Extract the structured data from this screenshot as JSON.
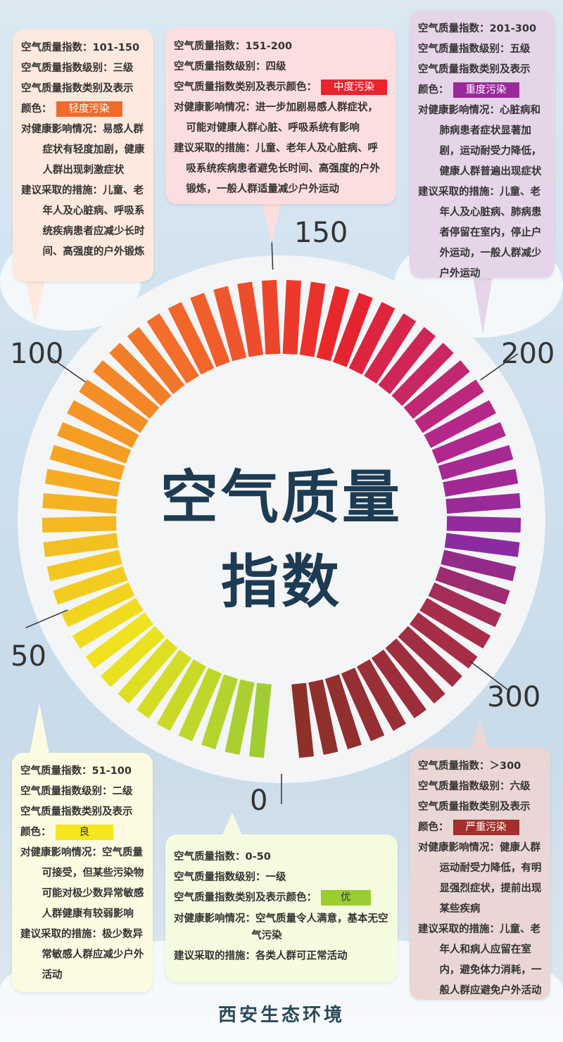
{
  "labels": {
    "index": "空气质量指数：",
    "level": "空气质量指数级别：",
    "category": "空气质量指数类别及表示颜色：",
    "category_a": "空气质量指数类别及表示",
    "category_b": "颜色：",
    "health": "对健康影响情况：",
    "measures": "建议采取的措施："
  },
  "title": {
    "line1": "空气质量",
    "line2": "指数"
  },
  "ticks": [
    "0",
    "50",
    "100",
    "150",
    "200",
    "300"
  ],
  "boxes": [
    {
      "range": "0-50",
      "level": "一级",
      "category": "优",
      "color": "#9acd32",
      "health": "空气质量令人满意，基本无空气污染",
      "measures": "各类人群可正常活动"
    },
    {
      "range": "51-100",
      "level": "二级",
      "category": "良",
      "color": "#f5e61e",
      "health": "空气质量可接受，但某些污染物可能对极少数异常敏感人群健康有较弱影响",
      "measures": "极少数异常敏感人群应减少户外活动"
    },
    {
      "range": "101-150",
      "level": "三级",
      "category": "轻度污染",
      "color": "#f06a2a",
      "health": "易感人群症状有轻度加剧，健康人群出现刺激症状",
      "measures": "儿童、老年人及心脏病、呼吸系统疾病患者应减少长时间、高强度的户外锻炼"
    },
    {
      "range": "151-200",
      "level": "四级",
      "category": "中度污染",
      "color": "#e8242f",
      "health": "进一步加剧易感人群症状，可能对健康人群心脏、呼吸系统有影响",
      "measures": "儿童、老年人及心脏病、呼吸系统疾病患者避免长时间、高强度的户外锻炼，一般人群适量减少户外运动"
    },
    {
      "range": "201-300",
      "level": "五级",
      "category": "重度污染",
      "color": "#9a2a9c",
      "health": "心脏病和肺病患者症状显著加剧，运动耐受力降低，健康人群普遍出现症状",
      "measures": "儿童、老年人及心脏病、肺病患者停留在室内，停止户外运动，一般人群减少户外运动"
    },
    {
      "range": "＞300",
      "level": "六级",
      "category": "严重污染",
      "color": "#a3302b",
      "health": "健康人群运动耐受力降低，有明显强烈症状，提前出现某些疾病",
      "measures": "儿童、老年人和病人应留在室内，避免体力消耗，一般人群应避免户外活动"
    }
  ],
  "footer": "西安生态环境"
}
